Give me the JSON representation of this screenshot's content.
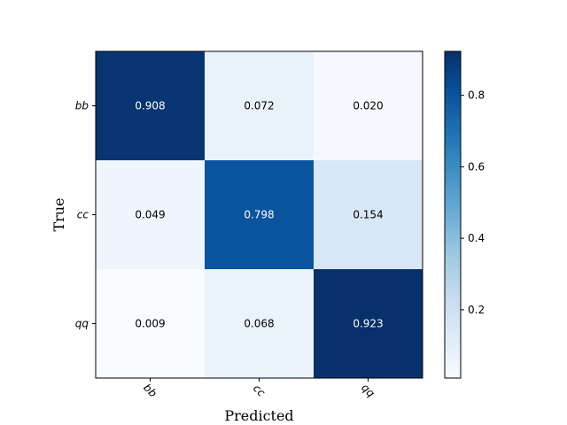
{
  "chart_data": {
    "type": "heatmap",
    "title": "",
    "xlabel": "Predicted",
    "ylabel": "True",
    "x_categories": [
      "bb",
      "cc",
      "qq"
    ],
    "y_categories": [
      "bb",
      "cc",
      "qq"
    ],
    "matrix": [
      [
        0.908,
        0.072,
        0.02
      ],
      [
        0.049,
        0.798,
        0.154
      ],
      [
        0.009,
        0.068,
        0.923
      ]
    ],
    "colormap": "Blues",
    "colorbar": {
      "range": [
        0.009,
        0.923
      ],
      "ticks": [
        0.2,
        0.4,
        0.6,
        0.8
      ]
    },
    "text_colors": {
      "light": "#ffffff",
      "dark": "#000000"
    }
  }
}
